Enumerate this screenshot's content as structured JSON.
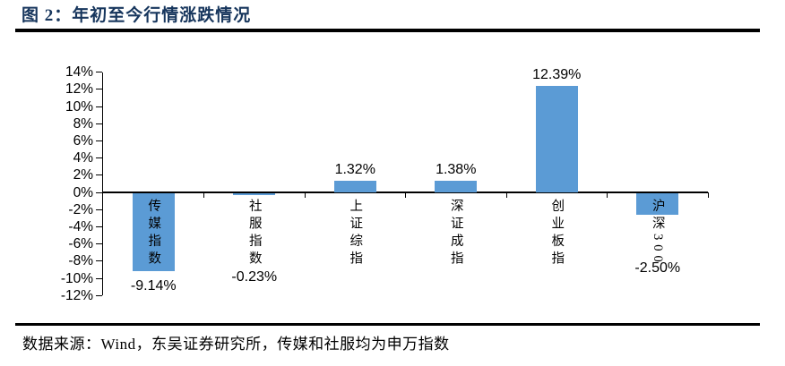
{
  "header": {
    "title": "图 2：年初至今行情涨跌情况"
  },
  "footer": {
    "source_note": "数据来源：Wind，东吴证券研究所，传媒和社服均为申万指数"
  },
  "colors": {
    "bar": "#5B9BD5",
    "title": "#17365D",
    "rule": "#000000",
    "text": "#000000"
  },
  "chart_data": {
    "type": "bar",
    "title": "年初至今行情涨跌情况",
    "categories": [
      "传媒指数",
      "社服指数",
      "上证综指",
      "深证成指",
      "创业板指",
      "沪深300"
    ],
    "values": [
      -9.14,
      -0.23,
      1.32,
      1.38,
      12.39,
      -2.5
    ],
    "value_labels": [
      "-9.14%",
      "-0.23%",
      "1.32%",
      "1.38%",
      "12.39%",
      "-2.50%"
    ],
    "xlabel": "",
    "ylabel": "",
    "ylim": [
      -12,
      14
    ],
    "ytick_step": 2,
    "ytick_labels": [
      "14%",
      "12%",
      "10%",
      "8%",
      "6%",
      "4%",
      "2%",
      "0%",
      "-2%",
      "-4%",
      "-6%",
      "-8%",
      "-10%",
      "-12%"
    ],
    "grid": false,
    "legend": null,
    "bar_color": "#5B9BD5",
    "category_label_position": "below-zero-line-vertical",
    "value_label_position": "outside-end"
  }
}
